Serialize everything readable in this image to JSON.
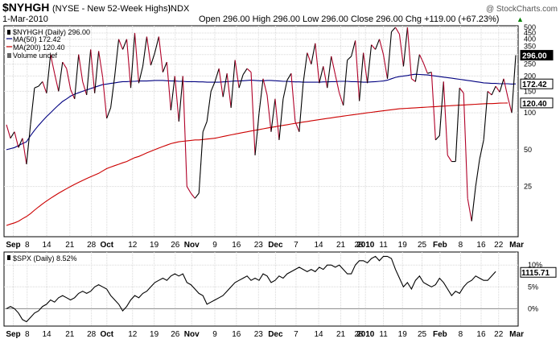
{
  "header": {
    "symbol": "$NYHGH",
    "description": "(NYSE - New 52-Week Highs)",
    "exchange": "INDX",
    "date": "1-Mar-2010",
    "ohlc": "Open 296.00  High 296.00  Low 296.00  Close 296.00  Chg +119.00 (+67.23%)",
    "ohlc_arrow": "▲",
    "watermark": "@ StockCharts.com"
  },
  "colors": {
    "price": "#b00028",
    "price_black": "#000000",
    "ma50": "#000080",
    "ma200": "#cc0000",
    "grid": "#d8d8d8",
    "panel_border": "#000000",
    "spx": "#000000"
  },
  "chart_data": [
    {
      "type": "line",
      "panel": "main",
      "title": "$NYHGH (NYSE - New 52-Week Highs) INDX",
      "log_scale": true,
      "ylim": [
        10,
        500
      ],
      "y_ticks": [
        "500",
        "450",
        "400",
        "350",
        "300",
        "250",
        "200",
        "150",
        "100",
        "50",
        "25"
      ],
      "y_tick_values": [
        500,
        450,
        400,
        350,
        300,
        250,
        200,
        150,
        100,
        50,
        25
      ],
      "legend": [
        {
          "label": "$NYHGH (Daily) 296.00"
        },
        {
          "label": "MA(50) 172.42"
        },
        {
          "label": "MA(200) 120.40"
        },
        {
          "label": "Volume undef"
        }
      ],
      "legend_placement": "top-left",
      "value_tags": [
        {
          "label": "296.00",
          "value": 296,
          "style": "black"
        },
        {
          "label": "172.42",
          "value": 172.42,
          "style": "white"
        },
        {
          "label": "120.40",
          "value": 120.4,
          "style": "white"
        }
      ],
      "series": [
        {
          "name": "$NYHGH (Daily) 296.00",
          "values": [
            80,
            62,
            70,
            52,
            62,
            38,
            80,
            160,
            165,
            180,
            145,
            300,
            210,
            150,
            260,
            230,
            155,
            130,
            300,
            180,
            140,
            330,
            145,
            320,
            195,
            90,
            110,
            200,
            400,
            330,
            400,
            160,
            450,
            175,
            240,
            420,
            245,
            310,
            420,
            215,
            260,
            105,
            200,
            85,
            200,
            25,
            22,
            20,
            22,
            70,
            85,
            150,
            180,
            230,
            135,
            210,
            110,
            270,
            160,
            205,
            230,
            215,
            45,
            100,
            190,
            140,
            70,
            130,
            60,
            130,
            185,
            210,
            85,
            70,
            175,
            310,
            250,
            370,
            175,
            240,
            160,
            290,
            205,
            145,
            115,
            270,
            290,
            390,
            125,
            310,
            175,
            360,
            330,
            400,
            300,
            190,
            460,
            500,
            440,
            240,
            500,
            190,
            180,
            300,
            255,
            210,
            215,
            60,
            65,
            180,
            45,
            40,
            40,
            160,
            145,
            20,
            13,
            25,
            42,
            60,
            150,
            140,
            165,
            148,
            190,
            135,
            100,
            296
          ]
        },
        {
          "name": "MA(50) 172.42",
          "values": [
            50,
            51,
            52,
            54,
            56,
            58,
            65,
            72,
            79,
            86,
            93,
            100,
            108,
            116,
            124,
            130,
            137,
            142,
            146,
            150,
            154,
            158,
            162,
            166,
            170,
            172,
            174,
            176,
            178,
            180,
            180,
            181,
            181,
            182,
            182,
            182,
            183,
            184,
            184,
            184,
            183,
            182,
            182,
            181,
            181,
            180,
            180,
            180,
            179,
            179,
            178,
            178,
            178,
            178,
            179,
            180,
            181,
            182,
            182,
            183,
            184,
            185,
            184,
            183,
            183,
            184,
            184,
            183,
            182,
            181,
            181,
            180,
            179,
            179,
            178,
            178,
            178,
            178,
            178,
            179,
            179,
            180,
            180,
            181,
            181,
            181,
            180,
            180,
            179,
            178,
            178,
            179,
            180,
            181,
            182,
            185,
            190,
            195,
            198,
            200,
            202,
            205,
            207,
            206,
            205,
            204,
            202,
            200,
            198,
            196,
            194,
            192,
            190,
            188,
            186,
            184,
            182,
            180,
            178,
            176,
            175,
            174,
            174,
            173,
            173,
            173,
            172,
            172.42
          ]
        },
        {
          "name": "MA(200) 120.40",
          "values": [
            12,
            12.3,
            12.6,
            13,
            13.6,
            14.2,
            15,
            16,
            17,
            18,
            19,
            20,
            21,
            22,
            23,
            24,
            25,
            26,
            27,
            28,
            29,
            30,
            31,
            32,
            33.5,
            35,
            36,
            37,
            38,
            39,
            40,
            41.5,
            43,
            44,
            45.5,
            47,
            48.5,
            50,
            51.5,
            53,
            54.5,
            56,
            57,
            58,
            58.5,
            59,
            59.5,
            60,
            60,
            60.5,
            61,
            61.5,
            62,
            63,
            64,
            65,
            66,
            67,
            68,
            69,
            70,
            71,
            72,
            73,
            74,
            75,
            76,
            77,
            78,
            79,
            80,
            81,
            82,
            83,
            84,
            85,
            86,
            87,
            88,
            89,
            90,
            91,
            92,
            93,
            94,
            95,
            96,
            97,
            98,
            99,
            100,
            101,
            102,
            103,
            104,
            105,
            106,
            107,
            108,
            108.5,
            109,
            109.5,
            110,
            110.5,
            111,
            111.5,
            112,
            112.5,
            113,
            113.5,
            114,
            114.5,
            115,
            115.5,
            116,
            116.5,
            117,
            117.5,
            118,
            118.5,
            119,
            119,
            119.5,
            120,
            120.2,
            120.4
          ]
        }
      ]
    },
    {
      "type": "line",
      "panel": "lower",
      "title": "$SPX (Daily) 8.52%",
      "ylim": [
        -4,
        13
      ],
      "y_ticks": [
        "10%",
        "5%",
        "0%"
      ],
      "y_tick_values": [
        10,
        5,
        0
      ],
      "value_tags": [
        {
          "label": "1115.71",
          "value": 8.52
        }
      ],
      "series": [
        {
          "name": "$SPX (Daily) 8.52%",
          "values": [
            0,
            0.5,
            0,
            -1,
            -2.5,
            -3,
            -2,
            -1,
            -0.5,
            0.5,
            1,
            2,
            1.5,
            2.5,
            3,
            2.5,
            2,
            2.5,
            3.5,
            4,
            3.5,
            4,
            5,
            5.5,
            5,
            4.5,
            3,
            2,
            1,
            -0.5,
            0.5,
            2,
            3,
            2.5,
            3.5,
            4,
            5,
            6,
            6.5,
            7,
            6.5,
            7.5,
            8,
            7.5,
            8,
            6,
            5.5,
            4.5,
            3.5,
            3,
            1,
            1.5,
            2,
            2.5,
            3,
            4,
            5,
            6,
            6.5,
            7,
            7.5,
            6.5,
            7,
            6.5,
            8,
            7.5,
            6,
            6.5,
            7.5,
            7,
            8,
            8.5,
            9,
            9.5,
            9,
            8.5,
            9,
            8.5,
            9.5,
            9,
            10,
            10,
            9.5,
            10,
            9,
            8,
            8,
            10,
            11,
            11,
            10.5,
            11.5,
            12,
            11,
            12,
            12,
            11.5,
            9,
            7,
            5,
            6,
            4.5,
            6.5,
            7.5,
            6,
            5.5,
            5,
            5.5,
            7,
            6,
            4.5,
            3,
            4,
            3.5,
            5,
            6,
            6.5,
            7.5,
            7,
            6.5,
            6.5,
            7.5,
            8.52
          ]
        }
      ]
    }
  ],
  "x_axis": {
    "ticks": [
      {
        "label": "Sep",
        "bold": true
      },
      {
        "label": "8"
      },
      {
        "label": "14"
      },
      {
        "label": "21"
      },
      {
        "label": "28"
      },
      {
        "label": "Oct",
        "bold": true
      },
      {
        "label": "12"
      },
      {
        "label": "19"
      },
      {
        "label": "26"
      },
      {
        "label": "Nov",
        "bold": true
      },
      {
        "label": "9"
      },
      {
        "label": "16"
      },
      {
        "label": "23"
      },
      {
        "label": "Dec",
        "bold": true
      },
      {
        "label": "7"
      },
      {
        "label": "14"
      },
      {
        "label": "21"
      },
      {
        "label": "28"
      },
      {
        "label": "2010",
        "bold": true
      },
      {
        "label": "11"
      },
      {
        "label": "19"
      },
      {
        "label": "25"
      },
      {
        "label": "Feb",
        "bold": true
      },
      {
        "label": "8"
      },
      {
        "label": "16"
      },
      {
        "label": "22"
      },
      {
        "label": "Mar",
        "bold": true
      }
    ]
  }
}
